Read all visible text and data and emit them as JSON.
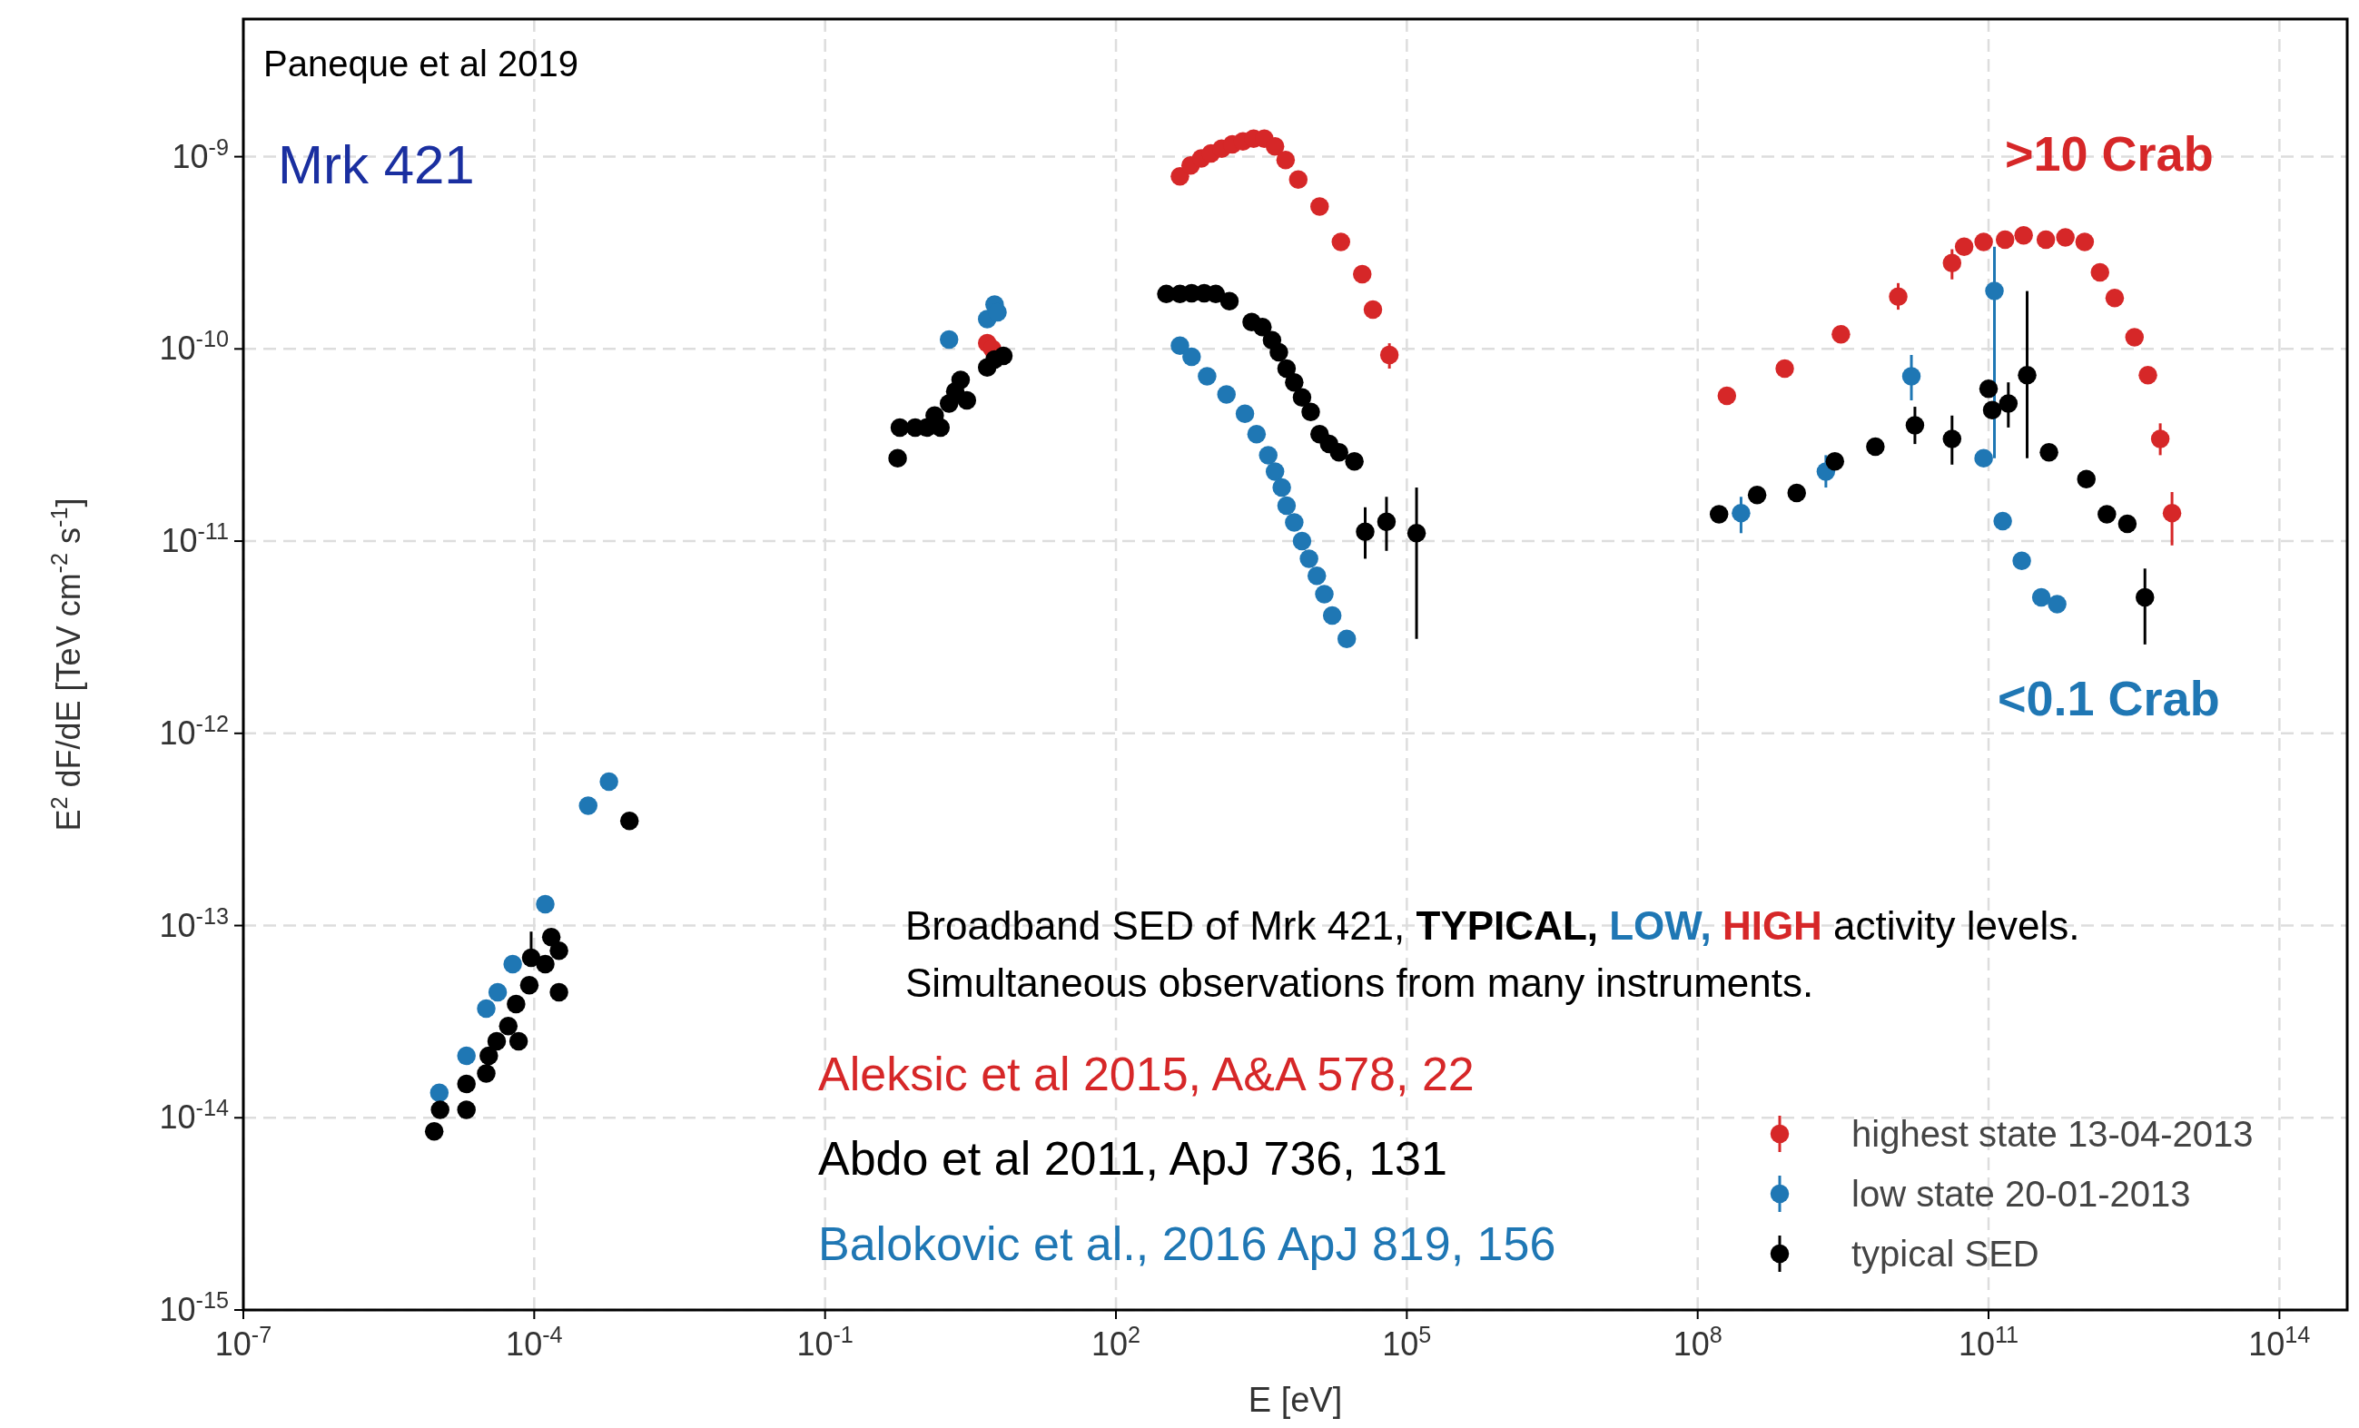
{
  "chart_data": {
    "type": "scatter",
    "log": "xy",
    "grid": true,
    "marker": "circle",
    "legend": "bottom right",
    "xlabel": "E [eV]",
    "ylabel": "E$^{2}$ dF/dE [TeV cm$^{-2}$ s$^{-1}$]",
    "xlim": [
      1e-07,
      500000000000000.0
    ],
    "ylim": [
      1e-15,
      5.2e-09
    ],
    "xticks": [
      {
        "value": 1e-07,
        "label": "10$^{-7}$"
      },
      {
        "value": 0.0001,
        "label": "10$^{-4}$"
      },
      {
        "value": 0.1,
        "label": "10$^{-1}$"
      },
      {
        "value": 100,
        "label": "10$^{2}$"
      },
      {
        "value": 100000.0,
        "label": "10$^{5}$"
      },
      {
        "value": 100000000.0,
        "label": "10$^{8}$"
      },
      {
        "value": 100000000000.0,
        "label": "10$^{11}$"
      },
      {
        "value": 100000000000000.0,
        "label": "10$^{14}$"
      }
    ],
    "yticks": [
      {
        "value": 1e-15,
        "label": "10$^{-15}$"
      },
      {
        "value": 1e-14,
        "label": "10$^{-14}$"
      },
      {
        "value": 1e-13,
        "label": "10$^{-13}$"
      },
      {
        "value": 1e-12,
        "label": "10$^{-12}$"
      },
      {
        "value": 1e-11,
        "label": "10$^{-11}$"
      },
      {
        "value": 1e-10,
        "label": "10$^{-10}$"
      },
      {
        "value": 1e-09,
        "label": "10$^{-9}$"
      }
    ],
    "annotations": [
      "Paneque et al 2019",
      "Mrk 421",
      ">10 Crab",
      "<0.1 Crab",
      "Broadband SED of Mrk 421,",
      "TYPICAL,",
      "LOW,",
      "HIGH",
      "activity levels.",
      "Simultaneous observations from many instruments.",
      "Aleksic et al 2015, A&A 578, 22",
      "Abdo et al 2011, ApJ 736, 131",
      "Balokovic et al., 2016 ApJ 819, 156"
    ],
    "series": [
      {
        "name": "highest state 13-04-2013",
        "color": "#d62728",
        "x": [
          4.7,
          5.3,
          457,
          589,
          759,
          955,
          1230,
          1585,
          2040,
          2630,
          3390,
          4370,
          5620,
          7590,
          12600,
          20900,
          34700,
          44700,
          66100,
          200000000.0,
          790000000.0,
          3000000000.0,
          11700000000.0,
          42000000000.0,
          56000000000.0,
          89000000000.0,
          148000000000.0,
          230000000000.0,
          390000000000.0,
          620000000000.0,
          980000000000.0,
          1410000000000.0,
          2000000000000.0,
          3200000000000.0,
          4400000000000.0,
          5900000000000.0,
          7800000000000.0
        ],
        "values": [
          1.07e-10,
          1e-10,
          7.9e-10,
          9e-10,
          9.8e-10,
          1.04e-09,
          1.1e-09,
          1.16e-09,
          1.2e-09,
          1.24e-09,
          1.24e-09,
          1.13e-09,
          9.6e-10,
          7.6e-10,
          5.5e-10,
          3.6e-10,
          2.45e-10,
          1.6e-10,
          9.3e-11,
          5.7e-11,
          7.9e-11,
          1.19e-10,
          1.87e-10,
          2.8e-10,
          3.4e-10,
          3.6e-10,
          3.7e-10,
          3.9e-10,
          3.7e-10,
          3.8e-10,
          3.6e-10,
          2.5e-10,
          1.84e-10,
          1.15e-10,
          7.3e-11,
          3.4e-11,
          1.4e-11
        ],
        "errors": [
          null,
          null,
          null,
          null,
          null,
          null,
          null,
          null,
          null,
          null,
          null,
          null,
          null,
          null,
          null,
          null,
          null,
          null,
          [
            7.9e-11,
            1.07e-10
          ],
          null,
          null,
          null,
          [
            1.6e-10,
            2.2e-10
          ],
          [
            2.3e-10,
            3.3e-10
          ],
          null,
          null,
          null,
          null,
          null,
          null,
          null,
          null,
          null,
          null,
          null,
          [
            2.8e-11,
            4.1e-11
          ],
          [
            9.5e-12,
            1.8e-11
          ]
        ]
      },
      {
        "name": "low state 20-01-2013",
        "color": "#1f77b4",
        "x": [
          1.05e-05,
          2e-05,
          3.2e-05,
          4.2e-05,
          6e-05,
          0.00013,
          0.00036,
          0.00059,
          1.9,
          4.7,
          5.6,
          6.0,
          457,
          603,
          871,
          1380,
          2140,
          2820,
          3720,
          4370,
          5130,
          5750,
          6900,
          8300,
          9800,
          11800,
          14100,
          17000,
          24000,
          280000000.0,
          2100000000.0,
          16000000000.0,
          89000000000.0,
          115000000000.0,
          140000000000.0,
          220000000000.0,
          350000000000.0,
          510000000000.0
        ],
        "values": [
          1.35e-14,
          2.1e-14,
          3.7e-14,
          4.5e-14,
          6.3e-14,
          1.29e-13,
          4.2e-13,
          5.6e-13,
          1.12e-10,
          1.43e-10,
          1.7e-10,
          1.55e-10,
          1.04e-10,
          9.1e-11,
          7.2e-11,
          5.8e-11,
          4.6e-11,
          3.6e-11,
          2.8e-11,
          2.3e-11,
          1.9e-11,
          1.53e-11,
          1.25e-11,
          1e-11,
          8.1e-12,
          6.6e-12,
          5.3e-12,
          4.1e-12,
          3.1e-12,
          1.4e-11,
          2.3e-11,
          7.2e-11,
          2.7e-11,
          2e-10,
          1.27e-11,
          7.9e-12,
          5.1e-12,
          4.7e-12
        ],
        "errors": [
          null,
          null,
          null,
          null,
          null,
          null,
          null,
          null,
          null,
          null,
          null,
          null,
          null,
          null,
          null,
          null,
          null,
          null,
          null,
          null,
          null,
          null,
          null,
          null,
          null,
          null,
          null,
          null,
          null,
          [
            1.1e-11,
            1.7e-11
          ],
          [
            1.9e-11,
            2.8e-11
          ],
          [
            5.4e-11,
            9.3e-11
          ],
          null,
          [
            2.7e-11,
            3.4e-10
          ],
          null,
          null,
          null,
          null
        ]
      },
      {
        "name": "typical SED",
        "color": "#000000",
        "x": [
          9.3e-06,
          1.07e-05,
          2e-05,
          2e-05,
          3.2e-05,
          3.4e-05,
          4.1e-05,
          5.4e-05,
          6.5e-05,
          6.9e-05,
          8.9e-05,
          9.3e-05,
          0.00013,
          0.00015,
          0.00018,
          0.00018,
          0.00096,
          0.56,
          0.59,
          0.85,
          1.12,
          1.35,
          1.55,
          1.9,
          2.2,
          2.5,
          2.9,
          4.7,
          5.6,
          6.9,
          331,
          457,
          603,
          813,
          1070,
          1480,
          2510,
          3240,
          4070,
          4790,
          5750,
          6900,
          8300,
          10200,
          12600,
          15800,
          20000,
          28800,
          37200,
          61700,
          126000,
          166000000.0,
          410000000.0,
          1050000000.0,
          2600000000.0,
          6800000000.0,
          17400000000.0,
          42000000000.0,
          100000000000.0,
          109000000000.0,
          160000000000.0,
          250000000000.0,
          420000000000.0,
          1020000000000.0,
          1660000000000.0,
          2700000000000.0,
          4100000000000.0
        ],
        "values": [
          8.5e-15,
          1.1e-14,
          1.1e-14,
          1.5e-14,
          1.7e-14,
          2.1e-14,
          2.5e-14,
          3e-14,
          3.9e-14,
          2.5e-14,
          4.9e-14,
          6.8e-14,
          6.3e-14,
          8.7e-14,
          7.4e-14,
          4.5e-14,
          3.5e-13,
          2.7e-11,
          3.9e-11,
          3.9e-11,
          3.9e-11,
          4.5e-11,
          3.9e-11,
          5.2e-11,
          6e-11,
          6.9e-11,
          5.4e-11,
          8e-11,
          8.8e-11,
          9.2e-11,
          1.93e-10,
          1.93e-10,
          1.95e-10,
          1.95e-10,
          1.93e-10,
          1.77e-10,
          1.38e-10,
          1.3e-10,
          1.11e-10,
          9.6e-11,
          7.9e-11,
          6.7e-11,
          5.6e-11,
          4.7e-11,
          3.6e-11,
          3.2e-11,
          2.9e-11,
          2.6e-11,
          1.12e-11,
          1.26e-11,
          1.1e-11,
          1.38e-11,
          1.74e-11,
          1.78e-11,
          2.6e-11,
          3.1e-11,
          4e-11,
          3.4e-11,
          6.2e-11,
          4.8e-11,
          5.2e-11,
          7.3e-11,
          2.9e-11,
          2.1e-11,
          1.38e-11,
          1.23e-11,
          5.1e-12
        ],
        "errors": [
          null,
          null,
          null,
          null,
          null,
          null,
          null,
          null,
          null,
          null,
          null,
          [
            6.8e-14,
            9.3e-14
          ],
          null,
          null,
          null,
          null,
          null,
          null,
          null,
          null,
          null,
          null,
          null,
          null,
          null,
          null,
          null,
          null,
          null,
          null,
          null,
          null,
          null,
          null,
          null,
          null,
          null,
          null,
          null,
          null,
          null,
          null,
          null,
          null,
          null,
          null,
          null,
          null,
          [
            8.1e-12,
            1.5e-11
          ],
          [
            8.9e-12,
            1.7e-11
          ],
          [
            3.1e-12,
            1.9e-11
          ],
          null,
          null,
          null,
          null,
          null,
          [
            3.2e-11,
            5e-11
          ],
          [
            2.5e-11,
            4.5e-11
          ],
          null,
          null,
          [
            3.9e-11,
            6.7e-11
          ],
          [
            2.7e-11,
            2e-10
          ],
          null,
          null,
          null,
          null,
          [
            2.9e-12,
            7.2e-12
          ]
        ]
      }
    ]
  }
}
